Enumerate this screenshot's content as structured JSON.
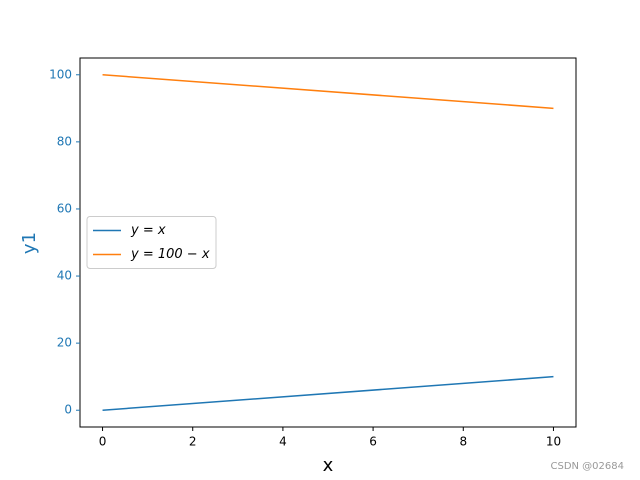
{
  "chart_data": {
    "type": "line",
    "x": [
      0,
      10
    ],
    "series": [
      {
        "name": "y = x",
        "color": "#1f77b4",
        "values": [
          0,
          10
        ]
      },
      {
        "name": "y = 100 − x",
        "color": "#ff7f0e",
        "values": [
          100,
          90
        ]
      }
    ],
    "xlim": [
      -0.5,
      10.5
    ],
    "ylim": [
      -5,
      105
    ],
    "xticks": [
      0,
      2,
      4,
      6,
      8,
      10
    ],
    "yticks": [
      0,
      20,
      40,
      60,
      80,
      100
    ],
    "xlabel": "x",
    "ylabel": "y1",
    "ylabel_color": "#1f77b4",
    "legend": "center left",
    "watermark": "CSDN @02684"
  }
}
